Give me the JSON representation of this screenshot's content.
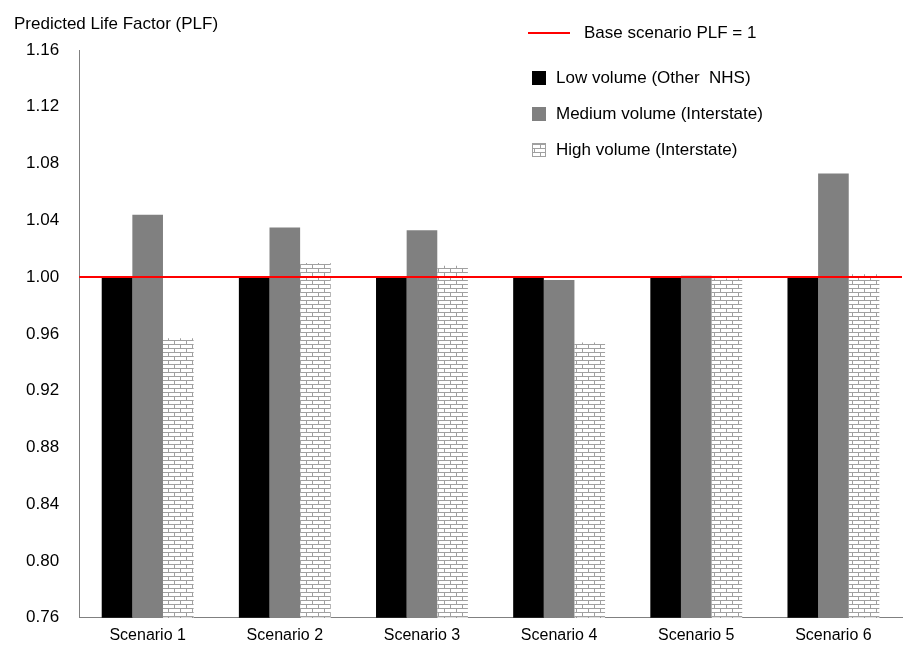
{
  "chart_data": {
    "type": "bar",
    "y_label": "Predicted Life Factor (PLF)",
    "categories": [
      "Scenario 1",
      "Scenario 2",
      "Scenario 3",
      "Scenario 4",
      "Scenario 5",
      "Scenario 6"
    ],
    "series": [
      {
        "name": "Low volume (Other  NHS)",
        "color": "#000000",
        "values": [
          1.0,
          1.0,
          1.0,
          1.0,
          1.0,
          1.0
        ]
      },
      {
        "name": "Medium volume (Interstate)",
        "color": "#808080",
        "values": [
          1.044,
          1.035,
          1.033,
          0.998,
          1.001,
          1.073
        ]
      },
      {
        "name": "High volume (Interstate)",
        "color": "#a0a0a0",
        "marker": "brick",
        "values": [
          0.957,
          1.01,
          1.008,
          0.954,
          0.999,
          1.002
        ]
      }
    ],
    "annotations": [
      {
        "type": "hline",
        "y": 1,
        "label": "Base scenario PLF = 1",
        "color": "#ff0000"
      }
    ],
    "ylim": [
      0.76,
      1.16
    ],
    "yticks": [
      0.76,
      {
        "value": 0.8,
        "label": "0.80"
      },
      0.84,
      0.88,
      0.92,
      0.96,
      {
        "value": 1,
        "label": "1.00"
      },
      1.04,
      1.08,
      1.12,
      1.16
    ],
    "grid": false,
    "legend": "upper right"
  }
}
